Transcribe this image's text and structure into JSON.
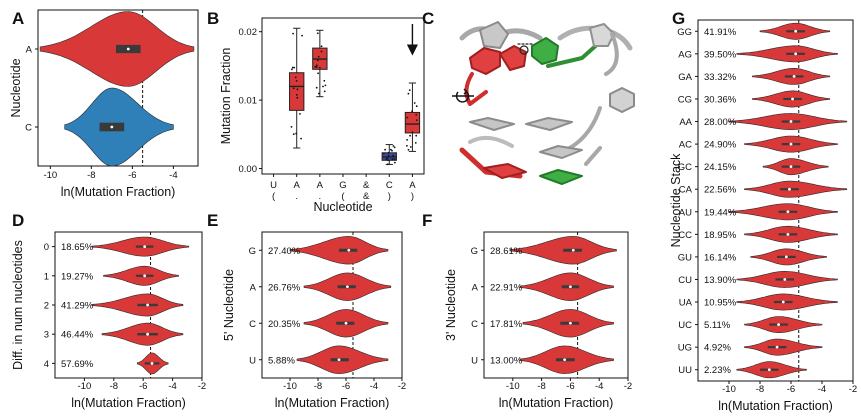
{
  "colors": {
    "red": "#d93838",
    "red_dark": "#8c1f1f",
    "blue": "#2f7fb9",
    "navy": "#3a4b9c",
    "green": "#39a33d",
    "gray": "#b9b9b9",
    "axis": "#111111"
  },
  "chart_data": [
    {
      "panel": "A",
      "type": "violin",
      "xlabel": "ln(Mutation Fraction)",
      "ylabel": "Nucleotide",
      "xlim": [
        -10.6,
        -2.8
      ],
      "xticks": [
        -10,
        -8,
        -6,
        -4
      ],
      "reference_line": -5.5,
      "categories": [
        "A",
        "C"
      ],
      "violins": [
        {
          "label": "A",
          "color": "red",
          "median": -6.2,
          "q1": -6.8,
          "q3": -5.6,
          "min": -10.5,
          "max": -3.0,
          "peak": 0.48
        },
        {
          "label": "C",
          "color": "blue",
          "median": -7.0,
          "q1": -7.6,
          "q3": -6.4,
          "min": -9.3,
          "max": -4.0,
          "peak": 0.5
        }
      ]
    },
    {
      "panel": "B",
      "type": "box",
      "xlabel": "Nucleotide",
      "ylabel": "Mutation Fraction",
      "ylim": [
        -0.0008,
        0.022
      ],
      "yticks": [
        "0.00",
        "0.01",
        "0.02"
      ],
      "categories": [
        {
          "base": "U",
          "struct": "("
        },
        {
          "base": "A",
          "struct": "."
        },
        {
          "base": "A",
          "struct": "."
        },
        {
          "base": "G",
          "struct": "("
        },
        {
          "base": "&",
          "struct": "&"
        },
        {
          "base": "C",
          "struct": ")"
        },
        {
          "base": "A",
          "struct": ")"
        }
      ],
      "boxes": [
        {
          "index": 1,
          "color": "red",
          "min": 0.003,
          "q1": 0.0085,
          "median": 0.012,
          "q3": 0.014,
          "max": 0.0205
        },
        {
          "index": 2,
          "color": "red",
          "min": 0.0105,
          "q1": 0.0145,
          "median": 0.016,
          "q3": 0.0176,
          "max": 0.0202
        },
        {
          "index": 5,
          "color": "navy",
          "min": 0.0006,
          "q1": 0.0012,
          "median": 0.0017,
          "q3": 0.0023,
          "max": 0.0035
        },
        {
          "index": 6,
          "color": "red",
          "min": 0.0025,
          "q1": 0.0052,
          "median": 0.0065,
          "q3": 0.0082,
          "max": 0.0125
        }
      ],
      "highlight_arrow_index": 6
    },
    {
      "panel": "D",
      "type": "violin",
      "xlabel": "ln(Mutation Fraction)",
      "ylabel": "Diff. in num nucleotides",
      "xlim": [
        -12,
        -2
      ],
      "xticks": [
        -10,
        -8,
        -6,
        -4,
        -2
      ],
      "reference_line": -5.5,
      "categories": [
        "0",
        "1",
        "2",
        "3",
        "4"
      ],
      "violins": [
        {
          "label": "0",
          "pct": "18.65%",
          "median": -5.9,
          "q1": -6.5,
          "q3": -5.3,
          "min": -9.5,
          "max": -2.9,
          "peak": 0.33
        },
        {
          "label": "1",
          "pct": "19.27%",
          "median": -5.9,
          "q1": -6.5,
          "q3": -5.3,
          "min": -8.7,
          "max": -3.6,
          "peak": 0.33
        },
        {
          "label": "2",
          "pct": "41.29%",
          "median": -5.7,
          "q1": -6.4,
          "q3": -5.0,
          "min": -9.5,
          "max": -3.3,
          "peak": 0.38
        },
        {
          "label": "3",
          "pct": "46.44%",
          "median": -5.7,
          "q1": -6.4,
          "q3": -5.0,
          "min": -8.8,
          "max": -3.3,
          "peak": 0.38
        },
        {
          "label": "4",
          "pct": "57.69%",
          "median": -5.4,
          "q1": -5.9,
          "q3": -4.9,
          "min": -6.4,
          "max": -4.3,
          "peak": 0.36
        }
      ]
    },
    {
      "panel": "E",
      "type": "violin",
      "xlabel": "ln(Mutation Fraction)",
      "ylabel": "5' Nucleotide",
      "xlim": [
        -12,
        -2
      ],
      "xticks": [
        -10,
        -8,
        -6,
        -4,
        -2
      ],
      "reference_line": -5.5,
      "categories": [
        "G",
        "A",
        "C",
        "U"
      ],
      "violins": [
        {
          "label": "G",
          "pct": "27.40%",
          "median": -5.8,
          "q1": -6.5,
          "q3": -5.2,
          "min": -10.0,
          "max": -3.0,
          "peak": 0.38
        },
        {
          "label": "A",
          "pct": "26.76%",
          "median": -5.9,
          "q1": -6.6,
          "q3": -5.3,
          "min": -9.0,
          "max": -2.8,
          "peak": 0.38
        },
        {
          "label": "C",
          "pct": "20.35%",
          "median": -6.0,
          "q1": -6.7,
          "q3": -5.4,
          "min": -9.0,
          "max": -3.0,
          "peak": 0.38
        },
        {
          "label": "U",
          "pct": "5.88%",
          "median": -6.5,
          "q1": -7.1,
          "q3": -5.8,
          "min": -9.5,
          "max": -3.0,
          "peak": 0.38
        }
      ]
    },
    {
      "panel": "F",
      "type": "violin",
      "xlabel": "ln(Mutation Fraction)",
      "ylabel": "3' Nucleotide",
      "xlim": [
        -12,
        -2
      ],
      "xticks": [
        -10,
        -8,
        -6,
        -4,
        -2
      ],
      "reference_line": -5.5,
      "categories": [
        "G",
        "A",
        "C",
        "U"
      ],
      "violins": [
        {
          "label": "G",
          "pct": "28.61%",
          "median": -5.8,
          "q1": -6.5,
          "q3": -5.2,
          "min": -10.2,
          "max": -2.8,
          "peak": 0.38
        },
        {
          "label": "A",
          "pct": "22.91%",
          "median": -6.0,
          "q1": -6.6,
          "q3": -5.4,
          "min": -9.5,
          "max": -3.0,
          "peak": 0.38
        },
        {
          "label": "C",
          "pct": "17.81%",
          "median": -6.0,
          "q1": -6.7,
          "q3": -5.4,
          "min": -9.3,
          "max": -3.0,
          "peak": 0.38
        },
        {
          "label": "U",
          "pct": "13.00%",
          "median": -6.4,
          "q1": -7.0,
          "q3": -5.7,
          "min": -9.5,
          "max": -3.0,
          "peak": 0.38
        }
      ]
    },
    {
      "panel": "G",
      "type": "violin",
      "xlabel": "ln(Mutation Fraction)",
      "ylabel": "Nucleotide Stack",
      "xlim": [
        -12,
        -2
      ],
      "xticks": [
        -10,
        -8,
        -6,
        -4,
        -2
      ],
      "reference_line": -5.5,
      "categories": [
        "GG",
        "AG",
        "GA",
        "CG",
        "AA",
        "AC",
        "GC",
        "CA",
        "AU",
        "CC",
        "GU",
        "CU",
        "UA",
        "UC",
        "UG",
        "UU"
      ],
      "violins": [
        {
          "label": "GG",
          "pct": "41.91%",
          "median": -5.7,
          "q1": -6.3,
          "q3": -5.1,
          "min": -8.0,
          "max": -3.5,
          "peak": 0.36
        },
        {
          "label": "AG",
          "pct": "39.50%",
          "median": -5.7,
          "q1": -6.3,
          "q3": -5.1,
          "min": -9.5,
          "max": -3.0,
          "peak": 0.36
        },
        {
          "label": "GA",
          "pct": "33.32%",
          "median": -5.8,
          "q1": -6.4,
          "q3": -5.2,
          "min": -8.5,
          "max": -3.5,
          "peak": 0.36
        },
        {
          "label": "CG",
          "pct": "30.36%",
          "median": -5.9,
          "q1": -6.5,
          "q3": -5.3,
          "min": -8.5,
          "max": -3.5,
          "peak": 0.36
        },
        {
          "label": "AA",
          "pct": "28.00%",
          "median": -6.0,
          "q1": -6.6,
          "q3": -5.4,
          "min": -10.0,
          "max": -2.4,
          "peak": 0.36
        },
        {
          "label": "AC",
          "pct": "24.90%",
          "median": -6.0,
          "q1": -6.6,
          "q3": -5.4,
          "min": -9.0,
          "max": -3.0,
          "peak": 0.36
        },
        {
          "label": "GC",
          "pct": "24.15%",
          "median": -6.0,
          "q1": -6.6,
          "q3": -5.4,
          "min": -7.8,
          "max": -3.6,
          "peak": 0.36
        },
        {
          "label": "CA",
          "pct": "22.56%",
          "median": -6.1,
          "q1": -6.7,
          "q3": -5.5,
          "min": -9.0,
          "max": -2.4,
          "peak": 0.36
        },
        {
          "label": "AU",
          "pct": "19.44%",
          "median": -6.2,
          "q1": -6.8,
          "q3": -5.6,
          "min": -10.0,
          "max": -3.0,
          "peak": 0.36
        },
        {
          "label": "CC",
          "pct": "18.95%",
          "median": -6.2,
          "q1": -6.8,
          "q3": -5.6,
          "min": -9.0,
          "max": -3.0,
          "peak": 0.36
        },
        {
          "label": "GU",
          "pct": "16.14%",
          "median": -6.3,
          "q1": -6.9,
          "q3": -5.7,
          "min": -8.6,
          "max": -3.7,
          "peak": 0.36
        },
        {
          "label": "CU",
          "pct": "13.90%",
          "median": -6.4,
          "q1": -7.0,
          "q3": -5.8,
          "min": -9.5,
          "max": -3.0,
          "peak": 0.36
        },
        {
          "label": "UA",
          "pct": "10.95%",
          "median": -6.5,
          "q1": -7.1,
          "q3": -5.9,
          "min": -9.5,
          "max": -3.0,
          "peak": 0.36
        },
        {
          "label": "UC",
          "pct": "5.11%",
          "median": -6.8,
          "q1": -7.4,
          "q3": -6.2,
          "min": -9.0,
          "max": -4.0,
          "peak": 0.36
        },
        {
          "label": "UG",
          "pct": "4.92%",
          "median": -6.9,
          "q1": -7.5,
          "q3": -6.3,
          "min": -9.0,
          "max": -4.0,
          "peak": 0.36
        },
        {
          "label": "UU",
          "pct": "2.23%",
          "median": -7.4,
          "q1": -8.0,
          "q3": -6.8,
          "min": -9.5,
          "max": -5.0,
          "peak": 0.36
        }
      ]
    }
  ],
  "structure_panel": {
    "label": "C",
    "description_labels": []
  }
}
